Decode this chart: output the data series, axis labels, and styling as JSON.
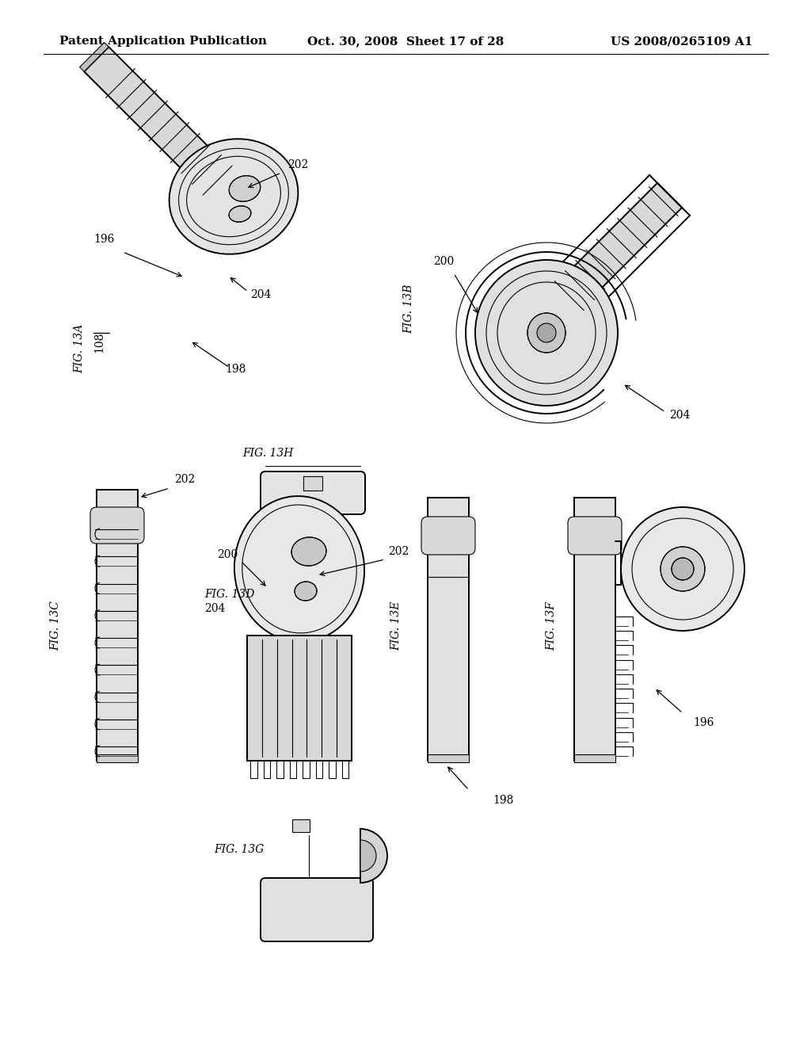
{
  "bg_color": "#ffffff",
  "lc": "#000000",
  "header_left": "Patent Application Publication",
  "header_center": "Oct. 30, 2008  Sheet 17 of 28",
  "header_right": "US 2008/0265109 A1",
  "lw": 1.4,
  "lw2": 0.8
}
